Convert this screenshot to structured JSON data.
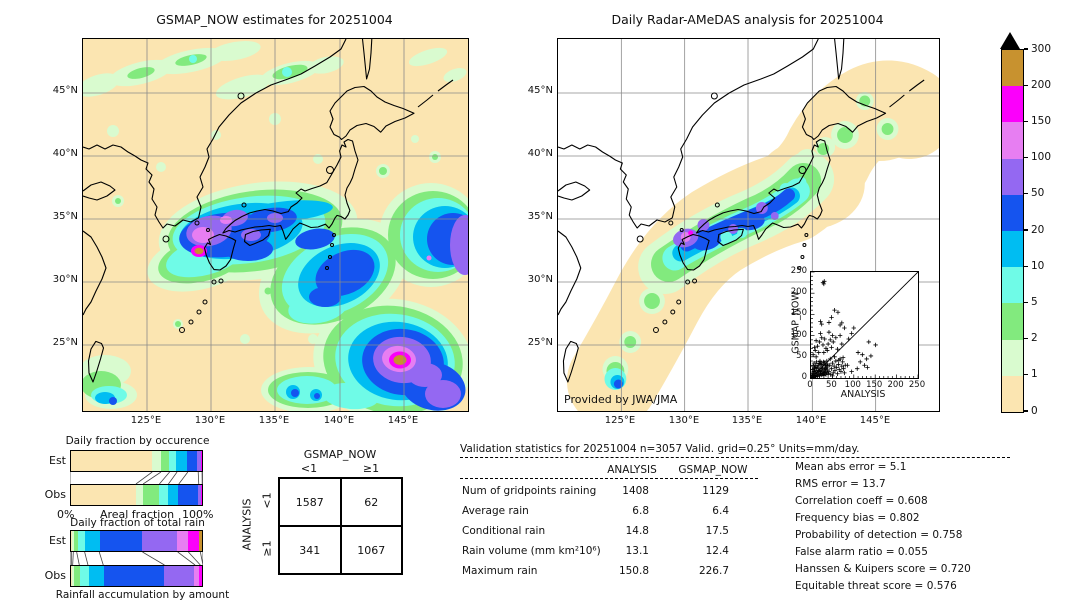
{
  "left_map": {
    "title": "GSMAP_NOW estimates for 20251004"
  },
  "right_map": {
    "title": "Daily Radar-AMeDAS analysis for 20251004",
    "credit": "Provided by JWA/JMA"
  },
  "axes": {
    "lat_labels": [
      "45°N",
      "40°N",
      "35°N",
      "30°N",
      "25°N"
    ],
    "lon_labels": [
      "125°E",
      "130°E",
      "135°E",
      "140°E",
      "145°E"
    ]
  },
  "palette": {
    "wheat": "#fbe5b1",
    "palegreen": "#d9fbcf",
    "green": "#82ea7e",
    "aqua": "#6ffbe7",
    "deepsky": "#00bdf2",
    "blue": "#1554ef",
    "purple": "#9468f2",
    "orchid": "#e77ef2",
    "magenta": "#fb00fb",
    "brown": "#c8922f",
    "over": "#000000"
  },
  "colorbar": {
    "tick_labels": [
      "300",
      "200",
      "150",
      "100",
      "50",
      "20",
      "10",
      "5",
      "2",
      "1",
      "0"
    ],
    "segment_colors_top_to_bottom": [
      "brown",
      "magenta",
      "orchid",
      "purple",
      "blue",
      "deepsky",
      "aqua",
      "green",
      "palegreen",
      "wheat"
    ],
    "units": "mm/day"
  },
  "chart_data": [
    {
      "id": "occurrence",
      "type": "bar",
      "stacked": true,
      "orientation": "horizontal",
      "title": "Daily fraction by occurence",
      "xlabel": "Areal fraction",
      "x_ticks": [
        "0%",
        "100%"
      ],
      "rows": [
        {
          "label": "Est",
          "segments": [
            {
              "color": "wheat",
              "pct": 61.8
            },
            {
              "color": "palegreen",
              "pct": 6.6
            },
            {
              "color": "green",
              "pct": 6.5
            },
            {
              "color": "aqua",
              "pct": 5.6
            },
            {
              "color": "deepsky",
              "pct": 8.1
            },
            {
              "color": "blue",
              "pct": 7.8
            },
            {
              "color": "purple",
              "pct": 2.9
            },
            {
              "color": "magenta",
              "pct": 0.7
            }
          ]
        },
        {
          "label": "Obs",
          "segments": [
            {
              "color": "wheat",
              "pct": 49.6
            },
            {
              "color": "palegreen",
              "pct": 5.4
            },
            {
              "color": "green",
              "pct": 12.2
            },
            {
              "color": "aqua",
              "pct": 6.8
            },
            {
              "color": "deepsky",
              "pct": 7.8
            },
            {
              "color": "blue",
              "pct": 15.0
            },
            {
              "color": "purple",
              "pct": 2.6
            },
            {
              "color": "magenta",
              "pct": 0.6
            }
          ]
        }
      ]
    },
    {
      "id": "total_rain",
      "type": "bar",
      "stacked": true,
      "orientation": "horizontal",
      "title": "Daily fraction of total rain",
      "caption": "Rainfall accumulation by amount",
      "rows": [
        {
          "label": "Est",
          "segments": [
            {
              "color": "wheat",
              "pct": 1
            },
            {
              "color": "palegreen",
              "pct": 1.5
            },
            {
              "color": "green",
              "pct": 2.5
            },
            {
              "color": "aqua",
              "pct": 6
            },
            {
              "color": "deepsky",
              "pct": 11
            },
            {
              "color": "blue",
              "pct": 32.5
            },
            {
              "color": "purple",
              "pct": 26.5
            },
            {
              "color": "orchid",
              "pct": 8
            },
            {
              "color": "magenta",
              "pct": 9
            },
            {
              "color": "brown",
              "pct": 2
            }
          ]
        },
        {
          "label": "Obs",
          "segments": [
            {
              "color": "wheat",
              "pct": 1
            },
            {
              "color": "palegreen",
              "pct": 1
            },
            {
              "color": "green",
              "pct": 5
            },
            {
              "color": "aqua",
              "pct": 6.5
            },
            {
              "color": "deepsky",
              "pct": 11.5
            },
            {
              "color": "blue",
              "pct": 46
            },
            {
              "color": "purple",
              "pct": 23
            },
            {
              "color": "orchid",
              "pct": 4
            },
            {
              "color": "magenta",
              "pct": 2
            }
          ]
        }
      ]
    },
    {
      "id": "contingency",
      "type": "table",
      "col_group": "GSMAP_NOW",
      "row_group": "ANALYSIS",
      "col_labels": [
        "<1",
        "≥1"
      ],
      "row_labels": [
        "<1",
        "≥1"
      ],
      "values": [
        [
          "1587",
          "62"
        ],
        [
          "341",
          "1067"
        ]
      ]
    },
    {
      "id": "validation",
      "type": "table",
      "title": "Validation statistics for 20251004  n=3057 Valid. grid=0.25° Units=mm/day.",
      "col_headers": [
        "ANALYSIS",
        "GSMAP_NOW"
      ],
      "rows": [
        {
          "label": "Num of gridpoints raining",
          "analysis": "1408",
          "gsmap": "1129"
        },
        {
          "label": "Average rain",
          "analysis": "6.8",
          "gsmap": "6.4"
        },
        {
          "label": "Conditional rain",
          "analysis": "14.8",
          "gsmap": "17.5"
        },
        {
          "label": "Rain volume (mm km²10⁶)",
          "analysis": "13.1",
          "gsmap": "12.4"
        },
        {
          "label": "Maximum rain",
          "analysis": "150.8",
          "gsmap": "226.7"
        }
      ]
    },
    {
      "id": "metrics",
      "type": "table",
      "rows": [
        {
          "label": "Mean abs error",
          "value": "5.1"
        },
        {
          "label": "RMS error",
          "value": "13.7"
        },
        {
          "label": "Correlation coeff",
          "value": "0.608"
        },
        {
          "label": "Frequency bias",
          "value": "0.802"
        },
        {
          "label": "Probability of detection",
          "value": "0.758"
        },
        {
          "label": "False alarm ratio",
          "value": "0.055"
        },
        {
          "label": "Hanssen & Kuipers score",
          "value": "0.720"
        },
        {
          "label": "Equitable threat score",
          "value": "0.576"
        }
      ]
    },
    {
      "id": "scatter",
      "type": "scatter",
      "xlabel": "ANALYSIS",
      "ylabel": "GSMAP_NOW",
      "xlim": [
        0,
        250
      ],
      "ylim": [
        0,
        250
      ],
      "x_ticks": [
        0,
        50,
        100,
        150,
        200,
        250
      ],
      "y_ticks": [
        0,
        50,
        100,
        150,
        200,
        250
      ],
      "points": [
        [
          2,
          1
        ],
        [
          3,
          6
        ],
        [
          5,
          3
        ],
        [
          4,
          12
        ],
        [
          6,
          8
        ],
        [
          7,
          2
        ],
        [
          8,
          15
        ],
        [
          9,
          5
        ],
        [
          10,
          10
        ],
        [
          11,
          3
        ],
        [
          12,
          18
        ],
        [
          13,
          7
        ],
        [
          14,
          25
        ],
        [
          15,
          4
        ],
        [
          16,
          12
        ],
        [
          17,
          30
        ],
        [
          18,
          8
        ],
        [
          19,
          16
        ],
        [
          20,
          5
        ],
        [
          21,
          22
        ],
        [
          22,
          11
        ],
        [
          23,
          35
        ],
        [
          24,
          7
        ],
        [
          25,
          18
        ],
        [
          26,
          28
        ],
        [
          27,
          9
        ],
        [
          28,
          14
        ],
        [
          29,
          38
        ],
        [
          30,
          6
        ],
        [
          31,
          20
        ],
        [
          32,
          12
        ],
        [
          33,
          30
        ],
        [
          34,
          16
        ],
        [
          35,
          8
        ],
        [
          36,
          24
        ],
        [
          37,
          13
        ],
        [
          38,
          33
        ],
        [
          39,
          19
        ],
        [
          40,
          10
        ],
        [
          3,
          20
        ],
        [
          5,
          28
        ],
        [
          7,
          35
        ],
        [
          9,
          22
        ],
        [
          11,
          30
        ],
        [
          13,
          38
        ],
        [
          15,
          26
        ],
        [
          17,
          18
        ],
        [
          19,
          34
        ],
        [
          21,
          40
        ],
        [
          23,
          15
        ],
        [
          25,
          32
        ],
        [
          27,
          24
        ],
        [
          29,
          10
        ],
        [
          31,
          36
        ],
        [
          33,
          22
        ],
        [
          35,
          30
        ],
        [
          37,
          40
        ],
        [
          39,
          28
        ],
        [
          6,
          16
        ],
        [
          8,
          24
        ],
        [
          42,
          15
        ],
        [
          44,
          30
        ],
        [
          46,
          8
        ],
        [
          48,
          22
        ],
        [
          50,
          35
        ],
        [
          52,
          12
        ],
        [
          54,
          28
        ],
        [
          56,
          18
        ],
        [
          58,
          40
        ],
        [
          60,
          25
        ],
        [
          62,
          10
        ],
        [
          64,
          32
        ],
        [
          66,
          20
        ],
        [
          68,
          45
        ],
        [
          70,
          15
        ],
        [
          72,
          28
        ],
        [
          74,
          38
        ],
        [
          76,
          22
        ],
        [
          78,
          12
        ],
        [
          80,
          30
        ],
        [
          45,
          45
        ],
        [
          55,
          50
        ],
        [
          65,
          42
        ],
        [
          75,
          48
        ],
        [
          50,
          5
        ],
        [
          5,
          55
        ],
        [
          10,
          65
        ],
        [
          15,
          75
        ],
        [
          20,
          85
        ],
        [
          25,
          95
        ],
        [
          30,
          60
        ],
        [
          35,
          70
        ],
        [
          40,
          80
        ],
        [
          45,
          90
        ],
        [
          50,
          100
        ],
        [
          8,
          72
        ],
        [
          12,
          88
        ],
        [
          18,
          60
        ],
        [
          22,
          105
        ],
        [
          28,
          78
        ],
        [
          32,
          92
        ],
        [
          38,
          65
        ],
        [
          42,
          108
        ],
        [
          48,
          72
        ],
        [
          52,
          85
        ],
        [
          58,
          95
        ],
        [
          62,
          68
        ],
        [
          68,
          100
        ],
        [
          72,
          80
        ],
        [
          12,
          50
        ],
        [
          28,
          225
        ],
        [
          31,
          228
        ],
        [
          30,
          222
        ],
        [
          55,
          160
        ],
        [
          63,
          155
        ],
        [
          48,
          143
        ],
        [
          42,
          131
        ],
        [
          22,
          133
        ],
        [
          25,
          127
        ],
        [
          68,
          125
        ],
        [
          72,
          130
        ],
        [
          78,
          118
        ],
        [
          100,
          118
        ],
        [
          95,
          105
        ],
        [
          88,
          92
        ],
        [
          120,
          55
        ],
        [
          130,
          45
        ],
        [
          125,
          30
        ],
        [
          140,
          52
        ],
        [
          151,
          78
        ],
        [
          135,
          85
        ],
        [
          115,
          38
        ],
        [
          108,
          22
        ],
        [
          95,
          15
        ],
        [
          85,
          30
        ],
        [
          132,
          25
        ],
        [
          110,
          60
        ]
      ]
    }
  ]
}
